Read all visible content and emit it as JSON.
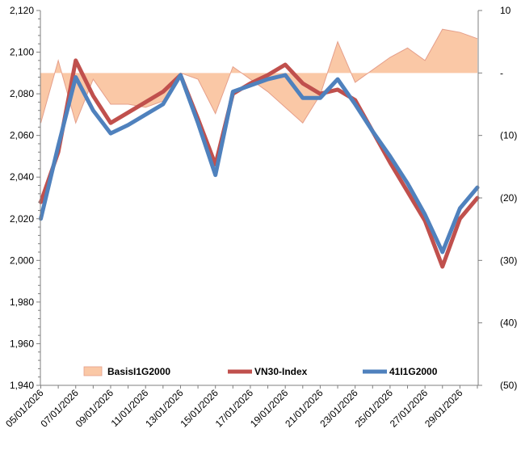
{
  "chart_data": {
    "type": "line-area-combo",
    "title": "",
    "x": [
      "05/01/2026",
      "06/01/2026",
      "07/01/2026",
      "08/01/2026",
      "09/01/2026",
      "10/01/2026",
      "11/01/2026",
      "12/01/2026",
      "13/01/2026",
      "14/01/2026",
      "15/01/2026",
      "16/01/2026",
      "17/01/2026",
      "18/01/2026",
      "19/01/2026",
      "20/01/2026",
      "21/01/2026",
      "22/01/2026",
      "23/01/2026",
      "24/01/2026",
      "25/01/2026",
      "26/01/2026",
      "27/01/2026",
      "28/01/2026",
      "29/01/2026",
      "30/01/2026"
    ],
    "x_tick_labels": [
      "05/01/2026",
      "07/01/2026",
      "09/01/2026",
      "11/01/2026",
      "13/01/2026",
      "15/01/2026",
      "17/01/2026",
      "19/01/2026",
      "21/01/2026",
      "23/01/2026",
      "25/01/2026",
      "27/01/2026",
      "29/01/2026"
    ],
    "left_axis": {
      "ylim": [
        1940,
        2120
      ],
      "ticks": [
        1940,
        1960,
        1980,
        2000,
        2020,
        2040,
        2060,
        2080,
        2100,
        2120
      ],
      "tick_labels": [
        "1,940",
        "1,960",
        "1,980",
        "2,000",
        "2,020",
        "2,040",
        "2,060",
        "2,080",
        "2,100",
        "2,120"
      ]
    },
    "right_axis": {
      "ylim": [
        -50,
        10
      ],
      "ticks": [
        10,
        0,
        -10,
        -20,
        -30,
        -40,
        -50
      ],
      "tick_labels": [
        "10",
        "-",
        "(10)",
        "(20)",
        "(30)",
        "(40)",
        "(50)"
      ]
    },
    "series": [
      {
        "name": "BasisI1G2000",
        "kind": "area",
        "axis": "right",
        "color": "#FAC8A6",
        "edge_color": "#E59F8B",
        "values": [
          -8,
          2,
          -8,
          -1,
          -5,
          -5,
          -5.5,
          -4.5,
          0,
          -1,
          -6.5,
          1,
          -1,
          -3,
          -5.5,
          -8,
          -3.5,
          5,
          -1.5,
          0.5,
          2.5,
          4,
          2,
          7,
          6.5,
          5.5
        ]
      },
      {
        "name": "VN30-Index",
        "kind": "line",
        "axis": "left",
        "color": "#C0504D",
        "values": [
          2028,
          2052,
          2096,
          2079,
          2066,
          2071,
          2076,
          2081,
          2089,
          2068,
          2046,
          2080,
          2085,
          2089,
          2094,
          2085,
          2080,
          2082,
          2077,
          2062,
          2047,
          2033,
          2019,
          1997,
          2020,
          2030
        ]
      },
      {
        "name": "41I1G2000",
        "kind": "line",
        "axis": "left",
        "color": "#4F81BD",
        "values": [
          2020,
          2055,
          2088,
          2072,
          2061,
          2065,
          2070,
          2075,
          2089,
          2066,
          2041,
          2081,
          2084,
          2087,
          2089,
          2078,
          2078,
          2087,
          2075,
          2062,
          2050,
          2037,
          2022,
          2004,
          2025,
          2035
        ]
      }
    ],
    "legend": {
      "position": "bottom-inside",
      "entries": [
        "BasisI1G2000",
        "VN30-Index",
        "41I1G2000"
      ]
    }
  }
}
